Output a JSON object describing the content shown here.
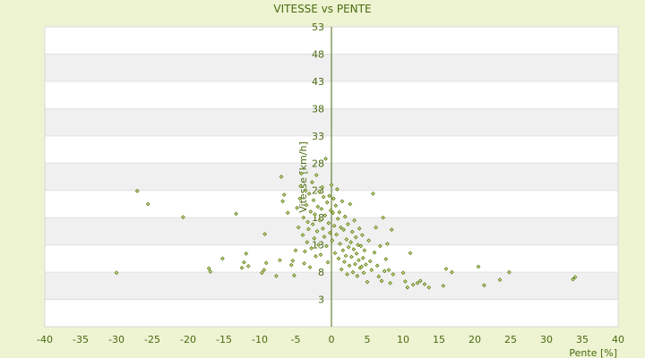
{
  "chart_data": {
    "type": "scatter",
    "title": "VITESSE vs PENTE",
    "xlabel": "Pente [%]",
    "ylabel": "Vitesse [km/h]",
    "xlim": [
      -40,
      40
    ],
    "ylim": [
      -2,
      53
    ],
    "x_ticks": [
      -40,
      -35,
      -30,
      -25,
      -20,
      -15,
      -10,
      -5,
      0,
      5,
      10,
      15,
      20,
      25,
      30,
      35,
      40
    ],
    "y_ticks": [
      3,
      8,
      13,
      18,
      23,
      28,
      33,
      38,
      43,
      48,
      53
    ],
    "grid": true,
    "band_colors": [
      "#ffffff",
      "#f0f0f0"
    ],
    "marker_color": "#5a7a10",
    "series": [
      {
        "values": [
          [
            -30.0,
            7.9
          ],
          [
            -27.1,
            22.9
          ],
          [
            -25.6,
            20.5
          ],
          [
            -20.7,
            18.1
          ],
          [
            -17.1,
            8.7
          ],
          [
            -16.9,
            8.1
          ],
          [
            -15.2,
            10.5
          ],
          [
            -13.3,
            18.7
          ],
          [
            -12.5,
            8.8
          ],
          [
            -12.2,
            9.8
          ],
          [
            -11.9,
            11.4
          ],
          [
            -11.6,
            9.1
          ],
          [
            -9.7,
            7.9
          ],
          [
            -9.4,
            8.4
          ],
          [
            -9.3,
            15.0
          ],
          [
            -9.1,
            9.7
          ],
          [
            -7.7,
            7.3
          ],
          [
            -7.2,
            10.2
          ],
          [
            -7.0,
            25.5
          ],
          [
            -6.8,
            21.0
          ],
          [
            -6.6,
            22.2
          ],
          [
            -6.1,
            18.9
          ],
          [
            -5.6,
            9.3
          ],
          [
            -5.4,
            10.1
          ],
          [
            -5.2,
            7.4
          ],
          [
            -5.0,
            12.0
          ],
          [
            -4.8,
            19.8
          ],
          [
            -4.6,
            16.2
          ],
          [
            -4.4,
            21.5
          ],
          [
            -4.3,
            23.8
          ],
          [
            -4.2,
            26.1
          ],
          [
            -4.0,
            14.8
          ],
          [
            -3.9,
            18.0
          ],
          [
            -3.8,
            9.6
          ],
          [
            -3.7,
            11.8
          ],
          [
            -3.6,
            23.0
          ],
          [
            -3.5,
            20.3
          ],
          [
            -3.4,
            13.5
          ],
          [
            -3.3,
            17.2
          ],
          [
            -3.2,
            15.9
          ],
          [
            -3.1,
            22.4
          ],
          [
            -3.0,
            8.9
          ],
          [
            -2.9,
            19.1
          ],
          [
            -2.8,
            12.4
          ],
          [
            -2.7,
            24.5
          ],
          [
            -2.6,
            16.8
          ],
          [
            -2.5,
            21.2
          ],
          [
            -2.4,
            14.2
          ],
          [
            -2.3,
            18.6
          ],
          [
            -2.2,
            10.9
          ],
          [
            -2.1,
            25.8
          ],
          [
            -2.0,
            15.5
          ],
          [
            -1.9,
            20.0
          ],
          [
            -1.8,
            13.0
          ],
          [
            -1.7,
            22.8
          ],
          [
            -1.6,
            17.5
          ],
          [
            -1.5,
            11.2
          ],
          [
            -1.4,
            19.6
          ],
          [
            -1.3,
            23.6
          ],
          [
            -1.2,
            16.0
          ],
          [
            -1.1,
            21.8
          ],
          [
            -1.0,
            14.5
          ],
          [
            -0.9,
            18.4
          ],
          [
            -0.8,
            28.8
          ],
          [
            -0.7,
            12.8
          ],
          [
            -0.6,
            20.8
          ],
          [
            -0.5,
            9.8
          ],
          [
            -0.4,
            17.0
          ],
          [
            -0.3,
            22.0
          ],
          [
            -0.2,
            15.2
          ],
          [
            -0.1,
            19.3
          ],
          [
            0.0,
            24.0
          ],
          [
            0.1,
            13.8
          ],
          [
            0.2,
            18.9
          ],
          [
            0.3,
            21.5
          ],
          [
            0.4,
            16.5
          ],
          [
            0.5,
            11.5
          ],
          [
            0.6,
            20.2
          ],
          [
            0.7,
            14.9
          ],
          [
            0.8,
            23.2
          ],
          [
            0.9,
            17.8
          ],
          [
            1.0,
            10.5
          ],
          [
            1.1,
            19.0
          ],
          [
            1.2,
            13.2
          ],
          [
            1.3,
            16.2
          ],
          [
            1.4,
            8.5
          ],
          [
            1.5,
            21.0
          ],
          [
            1.6,
            12.0
          ],
          [
            1.7,
            15.8
          ],
          [
            1.8,
            9.9
          ],
          [
            1.9,
            18.2
          ],
          [
            2.0,
            11.0
          ],
          [
            2.1,
            14.0
          ],
          [
            2.2,
            7.6
          ],
          [
            2.3,
            16.8
          ],
          [
            2.4,
            12.6
          ],
          [
            2.5,
            9.2
          ],
          [
            2.6,
            20.5
          ],
          [
            2.7,
            13.5
          ],
          [
            2.8,
            10.8
          ],
          [
            2.9,
            15.4
          ],
          [
            3.0,
            8.0
          ],
          [
            3.1,
            12.2
          ],
          [
            3.2,
            17.5
          ],
          [
            3.3,
            9.5
          ],
          [
            3.4,
            14.4
          ],
          [
            3.5,
            11.4
          ],
          [
            3.6,
            7.3
          ],
          [
            3.7,
            13.0
          ],
          [
            3.8,
            10.2
          ],
          [
            3.9,
            16.0
          ],
          [
            4.0,
            8.8
          ],
          [
            4.1,
            12.8
          ],
          [
            4.2,
            9.0
          ],
          [
            4.3,
            14.8
          ],
          [
            4.4,
            10.6
          ],
          [
            4.5,
            7.9
          ],
          [
            4.6,
            12.0
          ],
          [
            4.8,
            9.4
          ],
          [
            5.0,
            6.2
          ],
          [
            5.2,
            13.8
          ],
          [
            5.4,
            10.0
          ],
          [
            5.6,
            8.4
          ],
          [
            5.8,
            22.4
          ],
          [
            6.0,
            11.6
          ],
          [
            6.2,
            16.2
          ],
          [
            6.4,
            9.2
          ],
          [
            6.6,
            7.2
          ],
          [
            6.8,
            12.8
          ],
          [
            7.0,
            6.4
          ],
          [
            7.2,
            18.0
          ],
          [
            7.4,
            8.2
          ],
          [
            7.6,
            10.4
          ],
          [
            7.8,
            13.2
          ],
          [
            8.0,
            8.4
          ],
          [
            8.2,
            6.0
          ],
          [
            8.4,
            15.8
          ],
          [
            8.6,
            7.6
          ],
          [
            10.0,
            7.9
          ],
          [
            10.3,
            6.3
          ],
          [
            10.6,
            5.2
          ],
          [
            11.0,
            11.5
          ],
          [
            11.4,
            5.7
          ],
          [
            12.0,
            6.0
          ],
          [
            12.4,
            6.4
          ],
          [
            13.0,
            5.8
          ],
          [
            13.6,
            5.2
          ],
          [
            15.6,
            5.5
          ],
          [
            16.0,
            8.6
          ],
          [
            16.8,
            8.0
          ],
          [
            20.5,
            9.0
          ],
          [
            21.3,
            5.6
          ],
          [
            23.5,
            6.6
          ],
          [
            24.8,
            8.0
          ],
          [
            33.7,
            6.7
          ],
          [
            34.0,
            7.1
          ]
        ]
      }
    ]
  }
}
